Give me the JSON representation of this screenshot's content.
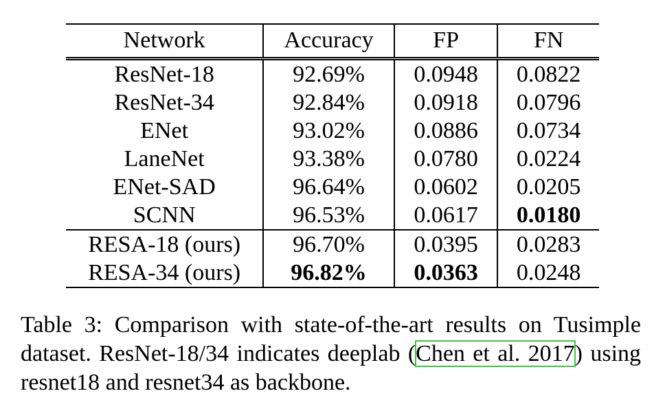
{
  "table": {
    "headers": [
      "Network",
      "Accuracy",
      "FP",
      "FN"
    ],
    "groups": [
      [
        {
          "network": "ResNet-18",
          "accuracy": "92.69%",
          "fp": "0.0948",
          "fn": "0.0822",
          "bold": []
        },
        {
          "network": "ResNet-34",
          "accuracy": "92.84%",
          "fp": "0.0918",
          "fn": "0.0796",
          "bold": []
        },
        {
          "network": "ENet",
          "accuracy": "93.02%",
          "fp": "0.0886",
          "fn": "0.0734",
          "bold": []
        },
        {
          "network": "LaneNet",
          "accuracy": "93.38%",
          "fp": "0.0780",
          "fn": "0.0224",
          "bold": []
        },
        {
          "network": "ENet-SAD",
          "accuracy": "96.64%",
          "fp": "0.0602",
          "fn": "0.0205",
          "bold": []
        },
        {
          "network": "SCNN",
          "accuracy": "96.53%",
          "fp": "0.0617",
          "fn": "0.0180",
          "bold": [
            "fn"
          ]
        }
      ],
      [
        {
          "network": "RESA-18 (ours)",
          "accuracy": "96.70%",
          "fp": "0.0395",
          "fn": "0.0283",
          "bold": []
        },
        {
          "network": "RESA-34 (ours)",
          "accuracy": "96.82%",
          "fp": "0.0363",
          "fn": "0.0248",
          "bold": [
            "accuracy",
            "fp"
          ]
        }
      ]
    ]
  },
  "caption": {
    "prefix": "Table 3: Comparison with state-of-the-art results on Tusimple dataset. ResNet-18/34 indicates deeplab (",
    "citation": "Chen et al. 2017",
    "suffix": ") using resnet18 and resnet34 as backbone.",
    "citation_box_color": "#3ec43e"
  }
}
